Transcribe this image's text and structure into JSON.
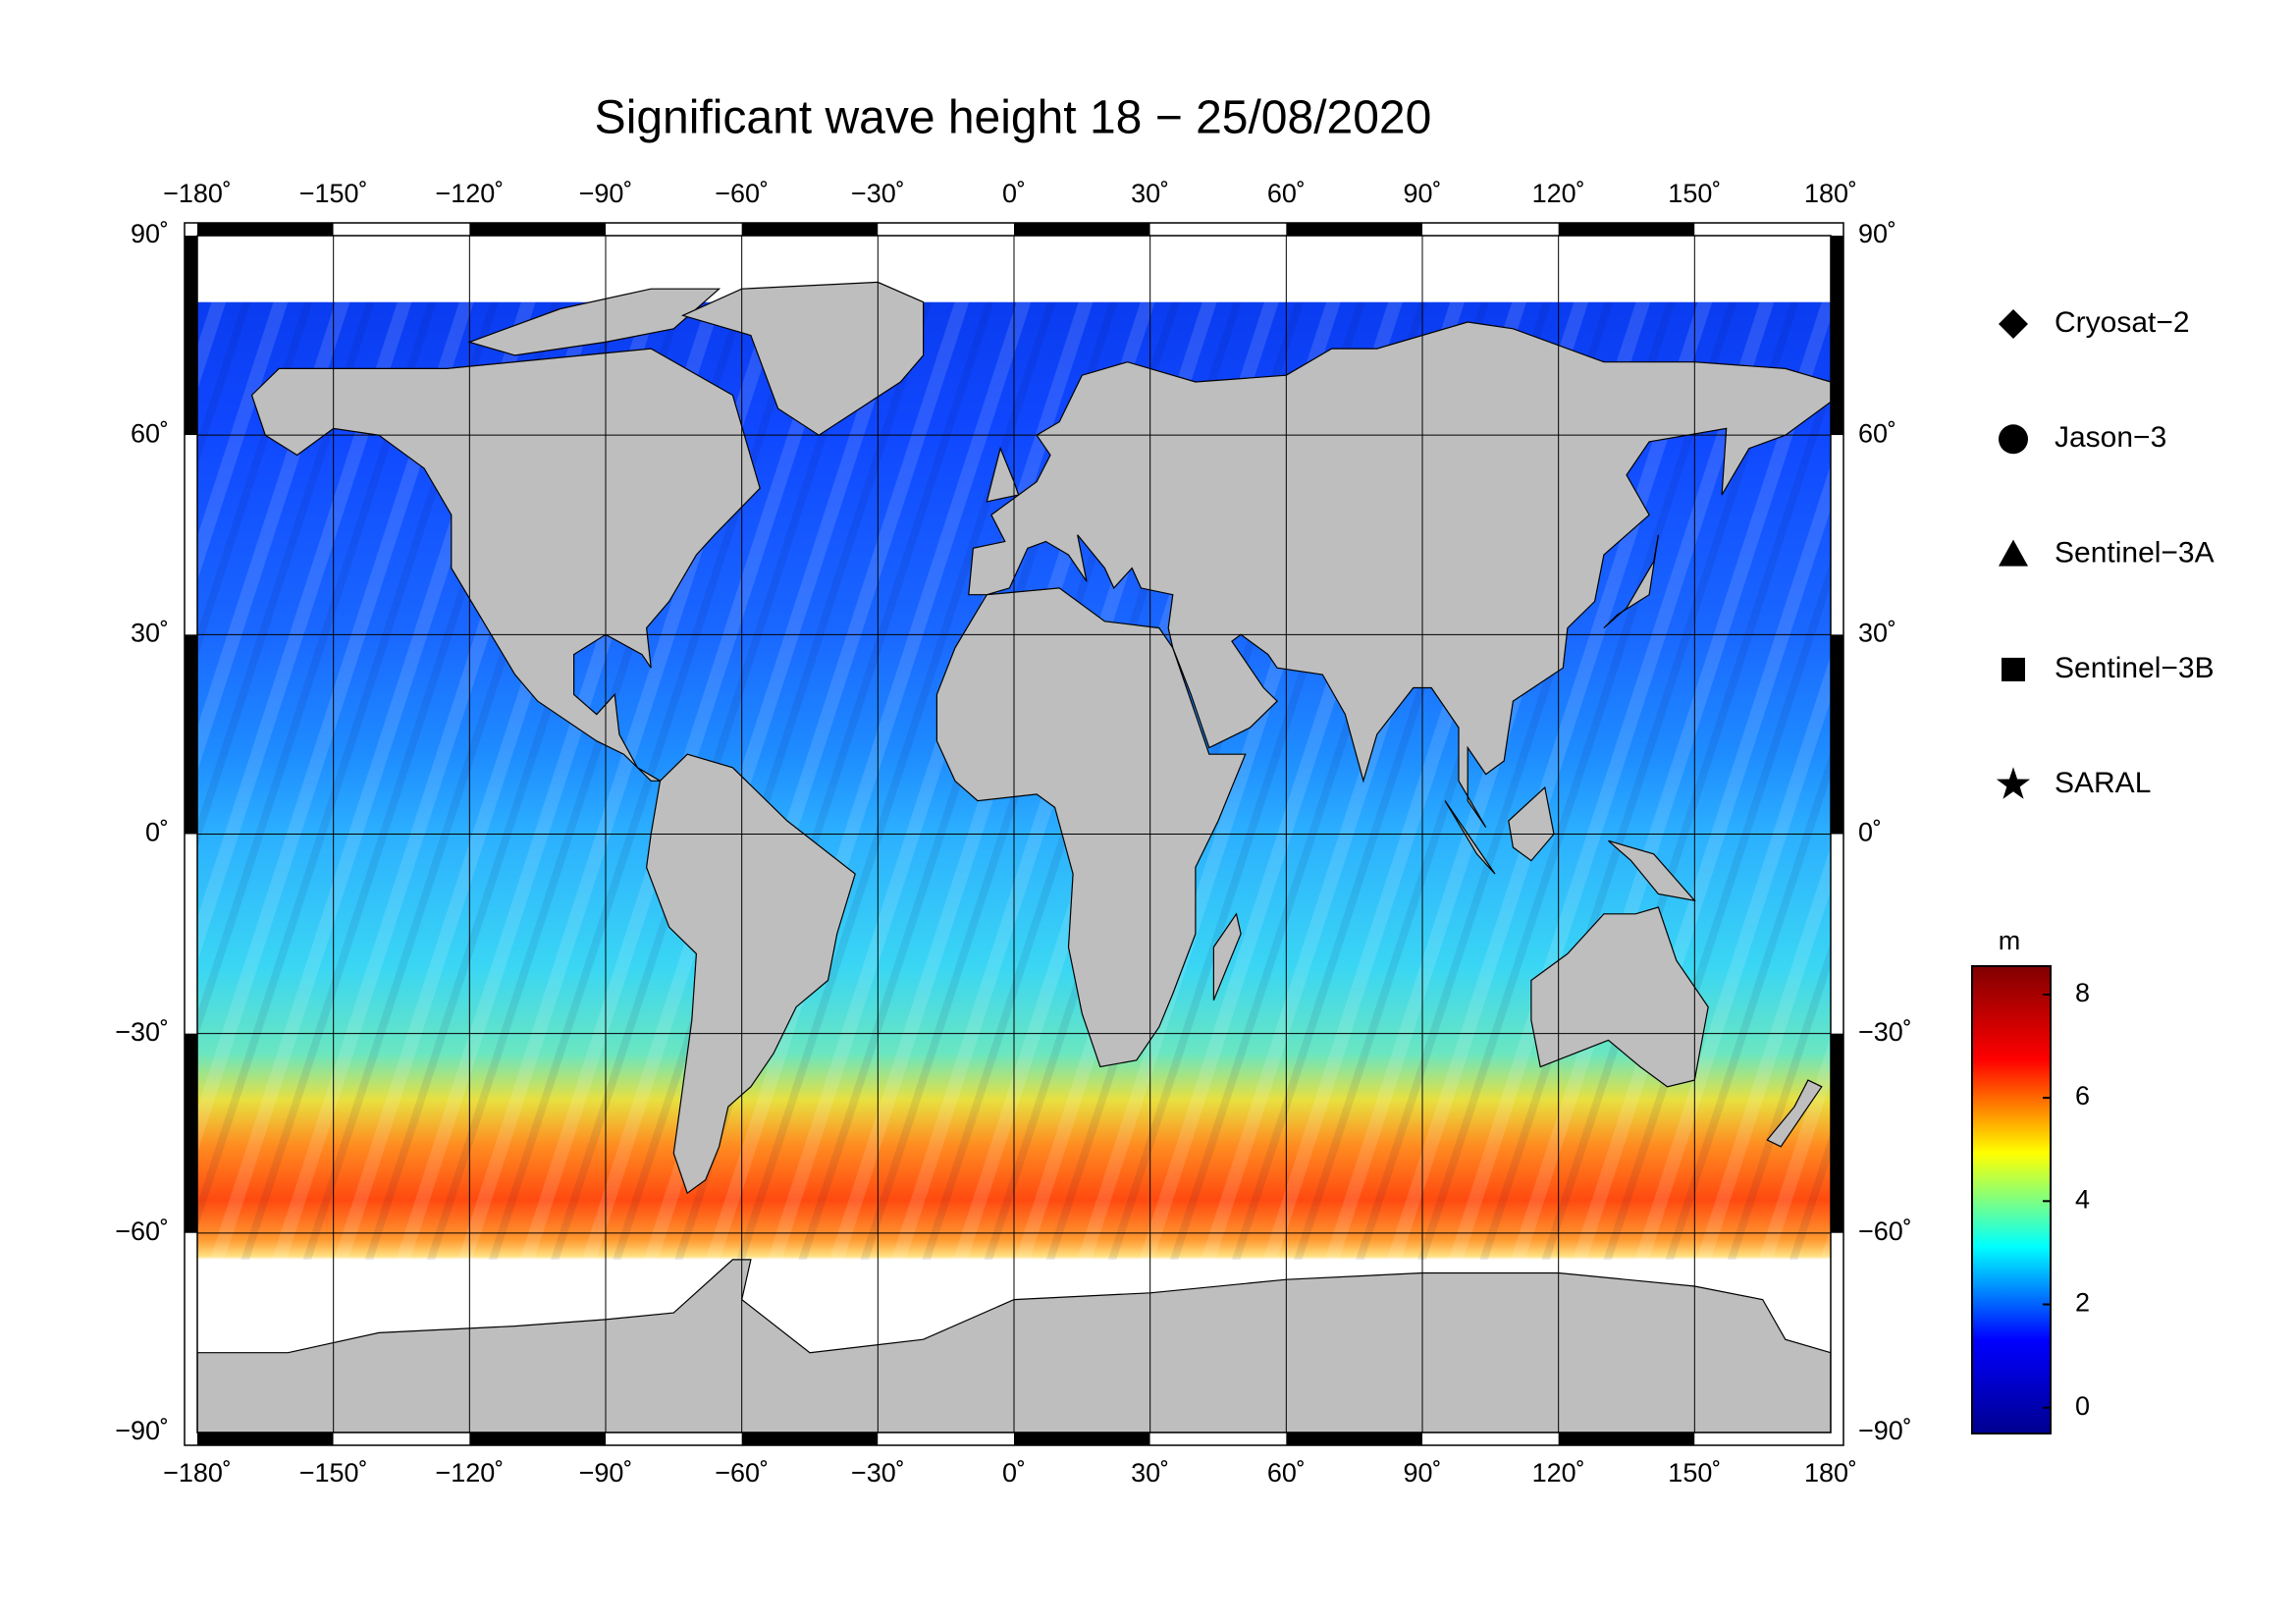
{
  "title": "Significant wave height 18 − 25/08/2020",
  "map": {
    "xlim": [
      -180,
      180
    ],
    "ylim": [
      -90,
      90
    ],
    "grid": true,
    "xticks": [
      {
        "value": -180,
        "label": "−180˚"
      },
      {
        "value": -150,
        "label": "−150˚"
      },
      {
        "value": -120,
        "label": "−120˚"
      },
      {
        "value": -90,
        "label": "−90˚"
      },
      {
        "value": -60,
        "label": "−60˚"
      },
      {
        "value": -30,
        "label": "−30˚"
      },
      {
        "value": 0,
        "label": "0˚"
      },
      {
        "value": 30,
        "label": "30˚"
      },
      {
        "value": 60,
        "label": "60˚"
      },
      {
        "value": 90,
        "label": "90˚"
      },
      {
        "value": 120,
        "label": "120˚"
      },
      {
        "value": 150,
        "label": "150˚"
      },
      {
        "value": 180,
        "label": "180˚"
      }
    ],
    "yticks": [
      {
        "value": 90,
        "label": "90˚"
      },
      {
        "value": 60,
        "label": "60˚"
      },
      {
        "value": 30,
        "label": "30˚"
      },
      {
        "value": 0,
        "label": "0˚"
      },
      {
        "value": -30,
        "label": "−30˚"
      },
      {
        "value": -60,
        "label": "−60˚"
      },
      {
        "value": -90,
        "label": "−90˚"
      }
    ]
  },
  "legend": {
    "entries": [
      "Cryosat−2",
      "Jason−3",
      "Sentinel−3A",
      "Sentinel−3B",
      "SARAL"
    ]
  },
  "colorbar": {
    "label": "m",
    "lim": [
      -0.5,
      8.55
    ],
    "ticks": [
      0,
      2,
      4,
      6,
      8
    ],
    "colors": [
      "#00008f",
      "#0000ff",
      "#00ffff",
      "#ffff00",
      "#ff0000",
      "#800000"
    ]
  }
}
